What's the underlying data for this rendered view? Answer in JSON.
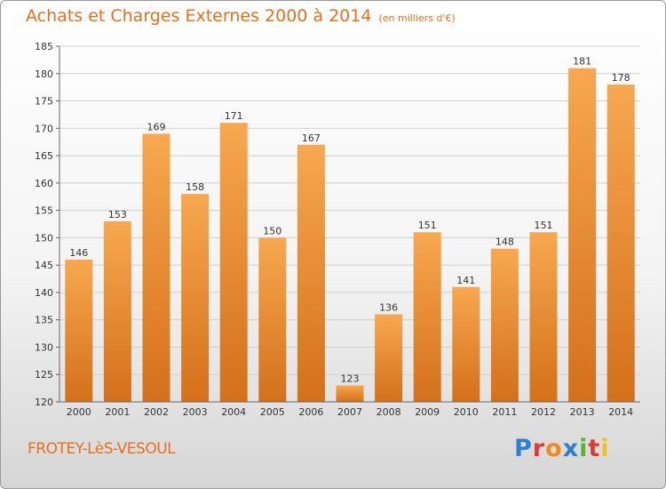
{
  "title": "Achats et Charges Externes 2000 à 2014",
  "unit": "(en milliers d'€)",
  "town": "FROTEY-LèS-VESOUL",
  "logo_text": "Proxiti",
  "colors": {
    "bar_top": "#f7a850",
    "bar_bottom": "#d4701a",
    "title": "#e8701c"
  },
  "chart_data": {
    "type": "bar",
    "title": "Achats et Charges Externes 2000 à 2014",
    "subtitle": "(en milliers d'€)",
    "categories": [
      "2000",
      "2001",
      "2002",
      "2003",
      "2004",
      "2005",
      "2006",
      "2007",
      "2008",
      "2009",
      "2010",
      "2011",
      "2012",
      "2013",
      "2014"
    ],
    "values": [
      146,
      153,
      169,
      158,
      171,
      150,
      167,
      123,
      136,
      151,
      141,
      148,
      151,
      181,
      178
    ],
    "ylim": [
      120,
      185
    ],
    "yticks": [
      120,
      125,
      130,
      135,
      140,
      145,
      150,
      155,
      160,
      165,
      170,
      175,
      180,
      185
    ],
    "grid": true,
    "xlabel": "",
    "ylabel": ""
  }
}
